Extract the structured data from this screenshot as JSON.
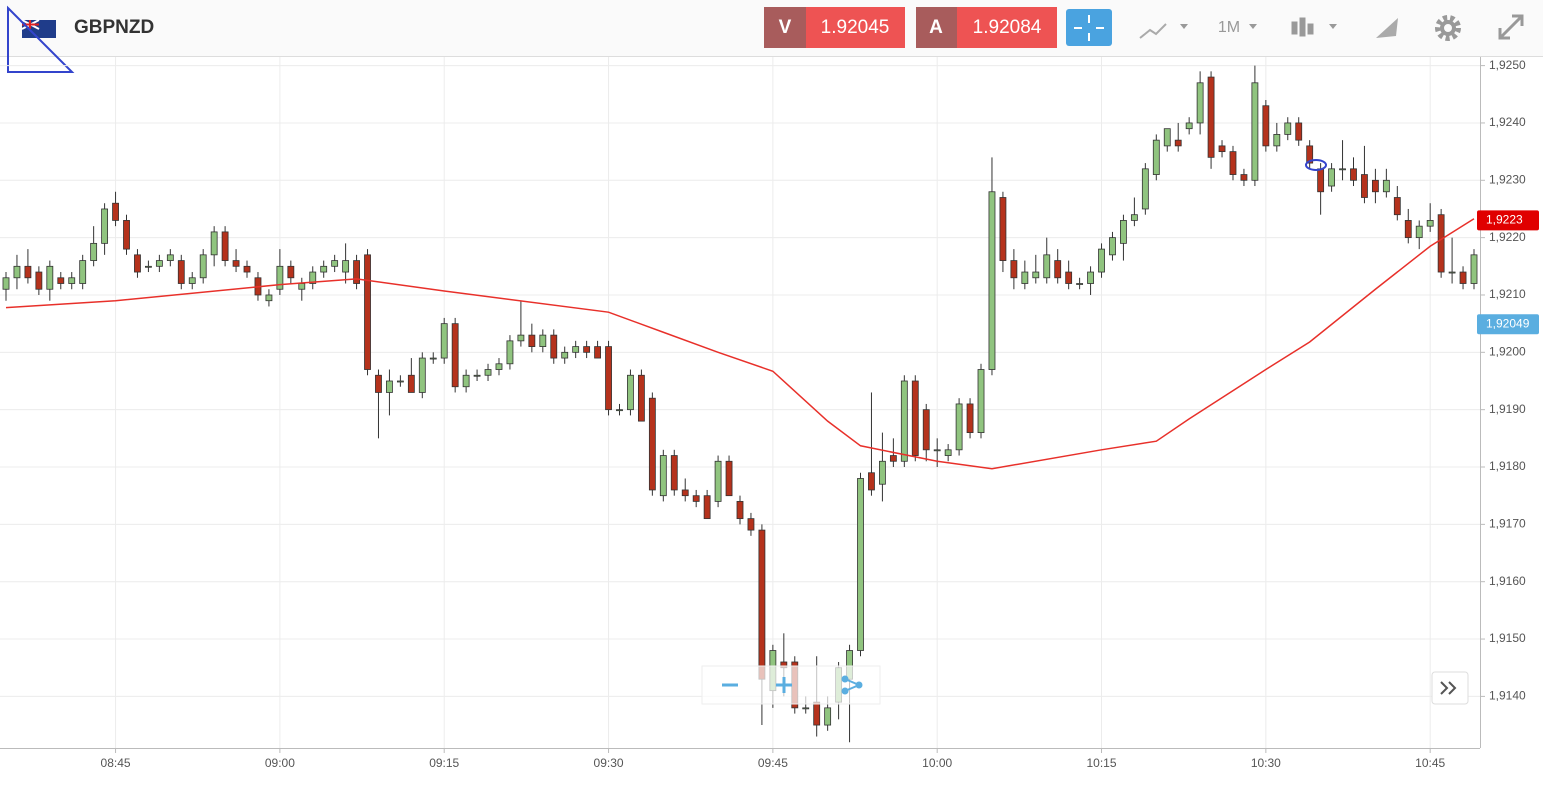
{
  "toolbar": {
    "symbol": "GBPNZD",
    "sell_label": "V",
    "sell_price": "1.92045",
    "buy_label": "A",
    "buy_price": "1.92084",
    "timeframe": "1M"
  },
  "chart_data": {
    "type": "candlestick",
    "up_color": "#90c47f",
    "down_color": "#b5321c",
    "grid": true,
    "x": [
      "08:35",
      "08:36",
      "08:37",
      "08:38",
      "08:39",
      "08:40",
      "08:41",
      "08:42",
      "08:43",
      "08:44",
      "08:45",
      "08:46",
      "08:47",
      "08:48",
      "08:49",
      "08:50",
      "08:51",
      "08:52",
      "08:53",
      "08:54",
      "08:55",
      "08:56",
      "08:57",
      "08:58",
      "08:59",
      "09:00",
      "09:01",
      "09:02",
      "09:03",
      "09:04",
      "09:05",
      "09:06",
      "09:07",
      "09:08",
      "09:09",
      "09:10",
      "09:11",
      "09:12",
      "09:13",
      "09:14",
      "09:15",
      "09:16",
      "09:17",
      "09:18",
      "09:19",
      "09:20",
      "09:21",
      "09:22",
      "09:23",
      "09:24",
      "09:25",
      "09:26",
      "09:27",
      "09:28",
      "09:29",
      "09:30",
      "09:31",
      "09:32",
      "09:33",
      "09:34",
      "09:35",
      "09:36",
      "09:37",
      "09:38",
      "09:39",
      "09:40",
      "09:41",
      "09:42",
      "09:43",
      "09:44",
      "09:45",
      "09:46",
      "09:47",
      "09:48",
      "09:49",
      "09:50",
      "09:51",
      "09:52",
      "09:53",
      "09:54",
      "09:55",
      "09:56",
      "09:57",
      "09:58",
      "09:59",
      "10:00",
      "10:01",
      "10:02",
      "10:03",
      "10:04",
      "10:05",
      "10:06",
      "10:07",
      "10:08",
      "10:09",
      "10:10",
      "10:11",
      "10:12",
      "10:13",
      "10:14",
      "10:15",
      "10:16",
      "10:17",
      "10:18",
      "10:19",
      "10:20",
      "10:21",
      "10:22",
      "10:23",
      "10:24",
      "10:25",
      "10:26",
      "10:27",
      "10:28",
      "10:29",
      "10:30",
      "10:31",
      "10:32",
      "10:33",
      "10:34",
      "10:35",
      "10:36",
      "10:37",
      "10:38",
      "10:39",
      "10:40",
      "10:41",
      "10:42",
      "10:43",
      "10:44",
      "10:45",
      "10:46",
      "10:47",
      "10:48",
      "10:49"
    ],
    "ohlc": [
      [
        1.9211,
        1.9214,
        1.9209,
        1.9213
      ],
      [
        1.9213,
        1.9217,
        1.9211,
        1.9215
      ],
      [
        1.9215,
        1.9218,
        1.9212,
        1.9213
      ],
      [
        1.9214,
        1.9215,
        1.921,
        1.9211
      ],
      [
        1.9211,
        1.9216,
        1.9209,
        1.9215
      ],
      [
        1.9213,
        1.9214,
        1.9211,
        1.9212
      ],
      [
        1.9212,
        1.9214,
        1.9211,
        1.9213
      ],
      [
        1.9212,
        1.9217,
        1.9211,
        1.9216
      ],
      [
        1.9216,
        1.9222,
        1.9215,
        1.9219
      ],
      [
        1.9219,
        1.9226,
        1.9217,
        1.9225
      ],
      [
        1.9226,
        1.9228,
        1.9222,
        1.9223
      ],
      [
        1.9223,
        1.9224,
        1.9217,
        1.9218
      ],
      [
        1.9217,
        1.9218,
        1.9213,
        1.9214
      ],
      [
        1.9215,
        1.9216,
        1.9214,
        1.9215
      ],
      [
        1.9215,
        1.9217,
        1.9214,
        1.9216
      ],
      [
        1.9216,
        1.9218,
        1.9215,
        1.9217
      ],
      [
        1.9216,
        1.9217,
        1.9211,
        1.9212
      ],
      [
        1.9212,
        1.9214,
        1.9211,
        1.9213
      ],
      [
        1.9213,
        1.9218,
        1.9212,
        1.9217
      ],
      [
        1.9217,
        1.9222,
        1.9215,
        1.9221
      ],
      [
        1.9221,
        1.9222,
        1.9215,
        1.9216
      ],
      [
        1.9216,
        1.9218,
        1.9214,
        1.9215
      ],
      [
        1.9215,
        1.9216,
        1.9213,
        1.9214
      ],
      [
        1.9213,
        1.9214,
        1.9209,
        1.921
      ],
      [
        1.9209,
        1.9211,
        1.9208,
        1.921
      ],
      [
        1.9211,
        1.9218,
        1.921,
        1.9215
      ],
      [
        1.9215,
        1.9216,
        1.9212,
        1.9213
      ],
      [
        1.9211,
        1.9213,
        1.9209,
        1.9212
      ],
      [
        1.9212,
        1.9215,
        1.9211,
        1.9214
      ],
      [
        1.9214,
        1.9216,
        1.9213,
        1.9215
      ],
      [
        1.9215,
        1.9217,
        1.9214,
        1.9216
      ],
      [
        1.9214,
        1.9219,
        1.9212,
        1.9216
      ],
      [
        1.9216,
        1.9217,
        1.9211,
        1.9212
      ],
      [
        1.9217,
        1.9218,
        1.9196,
        1.9197
      ],
      [
        1.9196,
        1.9197,
        1.9185,
        1.9193
      ],
      [
        1.9193,
        1.9197,
        1.9189,
        1.9195
      ],
      [
        1.9195,
        1.9196,
        1.9194,
        1.9195
      ],
      [
        1.9196,
        1.9199,
        1.9193,
        1.9193
      ],
      [
        1.9193,
        1.92,
        1.9192,
        1.9199
      ],
      [
        1.9199,
        1.92,
        1.9198,
        1.9199
      ],
      [
        1.9199,
        1.9206,
        1.9198,
        1.9205
      ],
      [
        1.9205,
        1.9206,
        1.9193,
        1.9194
      ],
      [
        1.9194,
        1.9197,
        1.9193,
        1.9196
      ],
      [
        1.9196,
        1.9197,
        1.9195,
        1.9196
      ],
      [
        1.9196,
        1.9198,
        1.9195,
        1.9197
      ],
      [
        1.9197,
        1.9199,
        1.9196,
        1.9198
      ],
      [
        1.9198,
        1.9203,
        1.9197,
        1.9202
      ],
      [
        1.9202,
        1.9209,
        1.9201,
        1.9203
      ],
      [
        1.9203,
        1.9205,
        1.92,
        1.9201
      ],
      [
        1.9201,
        1.9204,
        1.92,
        1.9203
      ],
      [
        1.9203,
        1.9204,
        1.9198,
        1.9199
      ],
      [
        1.9199,
        1.9201,
        1.9198,
        1.92
      ],
      [
        1.92,
        1.9202,
        1.9199,
        1.9201
      ],
      [
        1.9201,
        1.9202,
        1.9199,
        1.92
      ],
      [
        1.9201,
        1.9202,
        1.9199,
        1.9199
      ],
      [
        1.9201,
        1.9202,
        1.9189,
        1.919
      ],
      [
        1.919,
        1.9191,
        1.9189,
        1.919
      ],
      [
        1.919,
        1.9197,
        1.9189,
        1.9196
      ],
      [
        1.9196,
        1.9197,
        1.9188,
        1.9188
      ],
      [
        1.9192,
        1.9193,
        1.9175,
        1.9176
      ],
      [
        1.9175,
        1.9183,
        1.9174,
        1.9182
      ],
      [
        1.9182,
        1.9183,
        1.9175,
        1.9176
      ],
      [
        1.9176,
        1.9178,
        1.9174,
        1.9175
      ],
      [
        1.9175,
        1.9176,
        1.9173,
        1.9174
      ],
      [
        1.9175,
        1.9176,
        1.9171,
        1.9171
      ],
      [
        1.9174,
        1.9182,
        1.9173,
        1.9181
      ],
      [
        1.9181,
        1.9182,
        1.9175,
        1.9175
      ],
      [
        1.9174,
        1.9175,
        1.917,
        1.9171
      ],
      [
        1.9171,
        1.9172,
        1.9168,
        1.9169
      ],
      [
        1.9169,
        1.917,
        1.9135,
        1.9143
      ],
      [
        1.9141,
        1.9149,
        1.9138,
        1.9148
      ],
      [
        1.9146,
        1.9151,
        1.914,
        1.9145
      ],
      [
        1.9146,
        1.9147,
        1.9137,
        1.9138
      ],
      [
        1.9138,
        1.914,
        1.9137,
        1.9138
      ],
      [
        1.9139,
        1.9147,
        1.9133,
        1.9135
      ],
      [
        1.9135,
        1.914,
        1.9134,
        1.9138
      ],
      [
        1.9139,
        1.9146,
        1.9136,
        1.9145
      ],
      [
        1.9143,
        1.9149,
        1.9132,
        1.9148
      ],
      [
        1.9148,
        1.9179,
        1.9147,
        1.9178
      ],
      [
        1.9179,
        1.9193,
        1.9175,
        1.9176
      ],
      [
        1.9177,
        1.9186,
        1.9174,
        1.9181
      ],
      [
        1.9182,
        1.9185,
        1.918,
        1.9181
      ],
      [
        1.9181,
        1.9196,
        1.918,
        1.9195
      ],
      [
        1.9195,
        1.9196,
        1.9181,
        1.9182
      ],
      [
        1.919,
        1.9191,
        1.9181,
        1.9183
      ],
      [
        1.9183,
        1.9185,
        1.918,
        1.9183
      ],
      [
        1.9182,
        1.9184,
        1.9181,
        1.9183
      ],
      [
        1.9183,
        1.9192,
        1.9182,
        1.9191
      ],
      [
        1.9191,
        1.9192,
        1.9185,
        1.9186
      ],
      [
        1.9186,
        1.9198,
        1.9185,
        1.9197
      ],
      [
        1.9197,
        1.9234,
        1.9196,
        1.9228
      ],
      [
        1.9227,
        1.9228,
        1.9214,
        1.9216
      ],
      [
        1.9216,
        1.9218,
        1.9211,
        1.9213
      ],
      [
        1.9212,
        1.9216,
        1.9211,
        1.9214
      ],
      [
        1.9213,
        1.9217,
        1.9212,
        1.9214
      ],
      [
        1.9213,
        1.922,
        1.9212,
        1.9217
      ],
      [
        1.9216,
        1.9218,
        1.9212,
        1.9213
      ],
      [
        1.9214,
        1.9216,
        1.9211,
        1.9212
      ],
      [
        1.9212,
        1.9213,
        1.9211,
        1.9212
      ],
      [
        1.9212,
        1.9215,
        1.921,
        1.9214
      ],
      [
        1.9214,
        1.9219,
        1.9213,
        1.9218
      ],
      [
        1.9217,
        1.9221,
        1.9216,
        1.922
      ],
      [
        1.9219,
        1.9224,
        1.9216,
        1.9223
      ],
      [
        1.9223,
        1.9227,
        1.9222,
        1.9224
      ],
      [
        1.9225,
        1.9233,
        1.9224,
        1.9232
      ],
      [
        1.9231,
        1.9238,
        1.923,
        1.9237
      ],
      [
        1.9236,
        1.9239,
        1.9235,
        1.9239
      ],
      [
        1.9237,
        1.924,
        1.9235,
        1.9236
      ],
      [
        1.9239,
        1.9241,
        1.9238,
        1.924
      ],
      [
        1.924,
        1.9249,
        1.9238,
        1.9247
      ],
      [
        1.9248,
        1.9249,
        1.9232,
        1.9234
      ],
      [
        1.9236,
        1.9237,
        1.9234,
        1.9235
      ],
      [
        1.9235,
        1.9236,
        1.923,
        1.9231
      ],
      [
        1.9231,
        1.9232,
        1.9229,
        1.923
      ],
      [
        1.923,
        1.925,
        1.9229,
        1.9247
      ],
      [
        1.9243,
        1.9244,
        1.9235,
        1.9236
      ],
      [
        1.9236,
        1.924,
        1.9235,
        1.9238
      ],
      [
        1.9238,
        1.9241,
        1.9237,
        1.924
      ],
      [
        1.924,
        1.9241,
        1.9236,
        1.9237
      ],
      [
        1.9236,
        1.9237,
        1.9232,
        1.9233
      ],
      [
        1.9232,
        1.9233,
        1.9224,
        1.9228
      ],
      [
        1.9229,
        1.9233,
        1.9228,
        1.9232
      ],
      [
        1.9232,
        1.9237,
        1.923,
        1.9232
      ],
      [
        1.9232,
        1.9234,
        1.9229,
        1.923
      ],
      [
        1.9231,
        1.9236,
        1.9226,
        1.9227
      ],
      [
        1.923,
        1.9232,
        1.9226,
        1.9228
      ],
      [
        1.9228,
        1.9232,
        1.9227,
        1.923
      ],
      [
        1.9227,
        1.9229,
        1.9223,
        1.9224
      ],
      [
        1.9223,
        1.9225,
        1.9219,
        1.922
      ],
      [
        1.922,
        1.9223,
        1.9218,
        1.9222
      ],
      [
        1.9222,
        1.9226,
        1.9221,
        1.9223
      ],
      [
        1.9224,
        1.9225,
        1.9213,
        1.9214
      ],
      [
        1.9214,
        1.922,
        1.9212,
        1.9214
      ],
      [
        1.9214,
        1.9215,
        1.9211,
        1.9212
      ],
      [
        1.9212,
        1.9218,
        1.9211,
        1.9217
      ]
    ],
    "moving_average": {
      "color": "#e8302a",
      "x": [
        "08:35",
        "08:45",
        "09:00",
        "09:07",
        "09:15",
        "09:30",
        "09:35",
        "09:40",
        "09:45",
        "09:50",
        "09:53",
        "10:00",
        "10:05",
        "10:15",
        "10:20",
        "10:23",
        "10:30",
        "10:34",
        "10:40",
        "10:45",
        "10:49"
      ],
      "values": [
        1.92078,
        1.9209,
        1.92118,
        1.92128,
        1.92107,
        1.9207,
        1.92035,
        1.92,
        1.91967,
        1.9188,
        1.91837,
        1.9181,
        1.91797,
        1.9183,
        1.91845,
        1.91884,
        1.9197,
        1.92018,
        1.9211,
        1.92185,
        1.92233
      ]
    },
    "xlim": [
      "08:35",
      "10:49"
    ],
    "xticks": [
      "08:45",
      "09:00",
      "09:15",
      "09:30",
      "09:45",
      "10:00",
      "10:15",
      "10:30",
      "10:45"
    ],
    "ylim": [
      1.9131,
      1.92515
    ],
    "yticks": [
      {
        "value": 1.914,
        "label": "1,9140"
      },
      {
        "value": 1.915,
        "label": "1,9150"
      },
      {
        "value": 1.916,
        "label": "1,9160"
      },
      {
        "value": 1.917,
        "label": "1,9170"
      },
      {
        "value": 1.918,
        "label": "1,9180"
      },
      {
        "value": 1.919,
        "label": "1,9190"
      },
      {
        "value": 1.92,
        "label": "1,9200"
      },
      {
        "value": 1.921,
        "label": "1,9210"
      },
      {
        "value": 1.922,
        "label": "1,9220"
      },
      {
        "value": 1.923,
        "label": "1,9230"
      },
      {
        "value": 1.924,
        "label": "1,9240"
      },
      {
        "value": 1.925,
        "label": "1,9250"
      }
    ],
    "price_tags": [
      {
        "value": 1.9223,
        "label": "1,9223",
        "color": "#e00000"
      },
      {
        "value": 1.92049,
        "label": "1,92049",
        "color": "#5aaee0"
      }
    ]
  }
}
